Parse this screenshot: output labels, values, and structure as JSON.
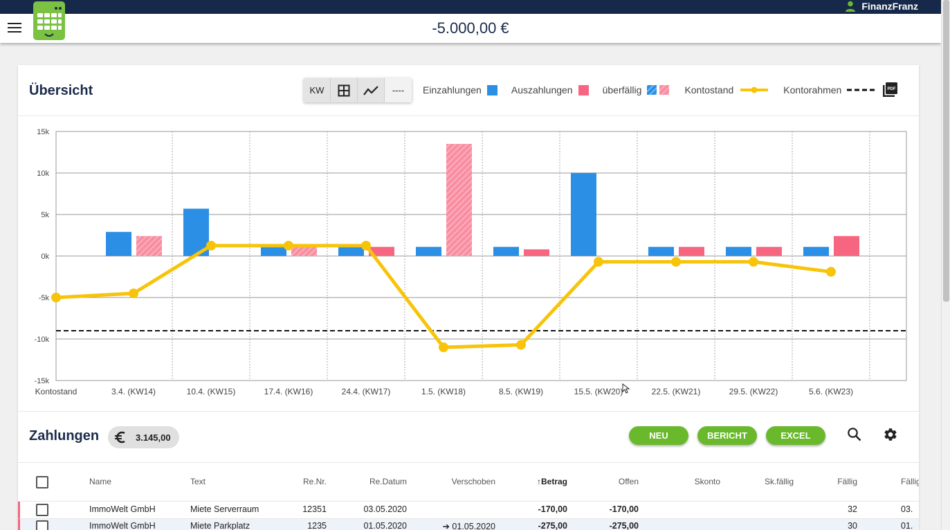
{
  "app": {
    "user_name": "FinanzFranz",
    "balance": "-5.000,00 €"
  },
  "overview": {
    "title": "Übersicht",
    "view_buttons": [
      "KW",
      "grid",
      "trend",
      "----"
    ],
    "legend": {
      "einzahlungen": "Einzahlungen",
      "auszahlungen": "Auszahlungen",
      "ueberfaellig": "überfällig",
      "kontostand": "Kontostand",
      "kontorahmen": "Kontorahmen"
    },
    "colors": {
      "einzahlungen": "#2b8fe6",
      "auszahlungen": "#f76680",
      "kontostand": "#f7c40a",
      "title": "#1b2b4a",
      "button": "#6ab92c"
    }
  },
  "chart_data": {
    "type": "bar",
    "categories": [
      "Kontostand",
      "3.4. (KW14)",
      "10.4. (KW15)",
      "17.4. (KW16)",
      "24.4. (KW17)",
      "1.5. (KW18)",
      "8.5. (KW19)",
      "15.5. (KW20)",
      "22.5. (KW21)",
      "29.5. (KW22)",
      "5.6. (KW23)"
    ],
    "ylim": [
      -15000,
      15000
    ],
    "yticks": [
      15000,
      10000,
      5000,
      0,
      -5000,
      -10000,
      -15000
    ],
    "ytick_labels": [
      "15k",
      "10k",
      "5k",
      "0k",
      "-5k",
      "-10k",
      "-15k"
    ],
    "series": [
      {
        "name": "Einzahlungen",
        "values": [
          0,
          2900,
          5700,
          1100,
          1100,
          1100,
          1100,
          10000,
          1100,
          1100,
          1100
        ]
      },
      {
        "name": "Auszahlungen",
        "values": [
          0,
          2400,
          0,
          1100,
          1100,
          13500,
          800,
          0,
          1100,
          1100,
          2400
        ]
      },
      {
        "name": "Kontostand",
        "type": "line",
        "values": [
          -5000,
          -4500,
          1250,
          1250,
          1250,
          -11000,
          -10700,
          -700,
          -700,
          -700,
          -1900
        ]
      }
    ],
    "overdue_einzahlungen": [
      false,
      false,
      false,
      false,
      false,
      false,
      false,
      false,
      false,
      false,
      false
    ],
    "overdue_auszahlungen": [
      false,
      true,
      false,
      true,
      false,
      true,
      false,
      false,
      false,
      false,
      false
    ],
    "kontorahmen": -9000,
    "grid": true
  },
  "payments": {
    "title": "Zahlungen",
    "total": "3.145,00",
    "buttons": {
      "neu": "NEU",
      "bericht": "BERICHT",
      "excel": "EXCEL"
    },
    "columns": [
      "Name",
      "Text",
      "Re.Nr.",
      "Re.Datum",
      "Verschoben",
      "Betrag",
      "Offen",
      "Skonto",
      "Sk.fällig",
      "Fällig",
      "Fällig"
    ],
    "rows": [
      {
        "name": "ImmoWelt GmbH",
        "text": "Miete Serverraum",
        "re_nr": "12351",
        "re_datum": "03.05.2020",
        "verschoben": "",
        "betrag": "-170,00",
        "offen": "-170,00",
        "skonto": "",
        "sk_faellig": "",
        "faellig": "32",
        "faellig2": "03."
      },
      {
        "name": "ImmoWelt GmbH",
        "text": "Miete Parkplatz",
        "re_nr": "1235",
        "re_datum": "01.05.2020",
        "verschoben": "➔ 01.05.2020",
        "betrag": "-275,00",
        "offen": "-275,00",
        "skonto": "",
        "sk_faellig": "",
        "faellig": "30",
        "faellig2": "01."
      }
    ]
  }
}
